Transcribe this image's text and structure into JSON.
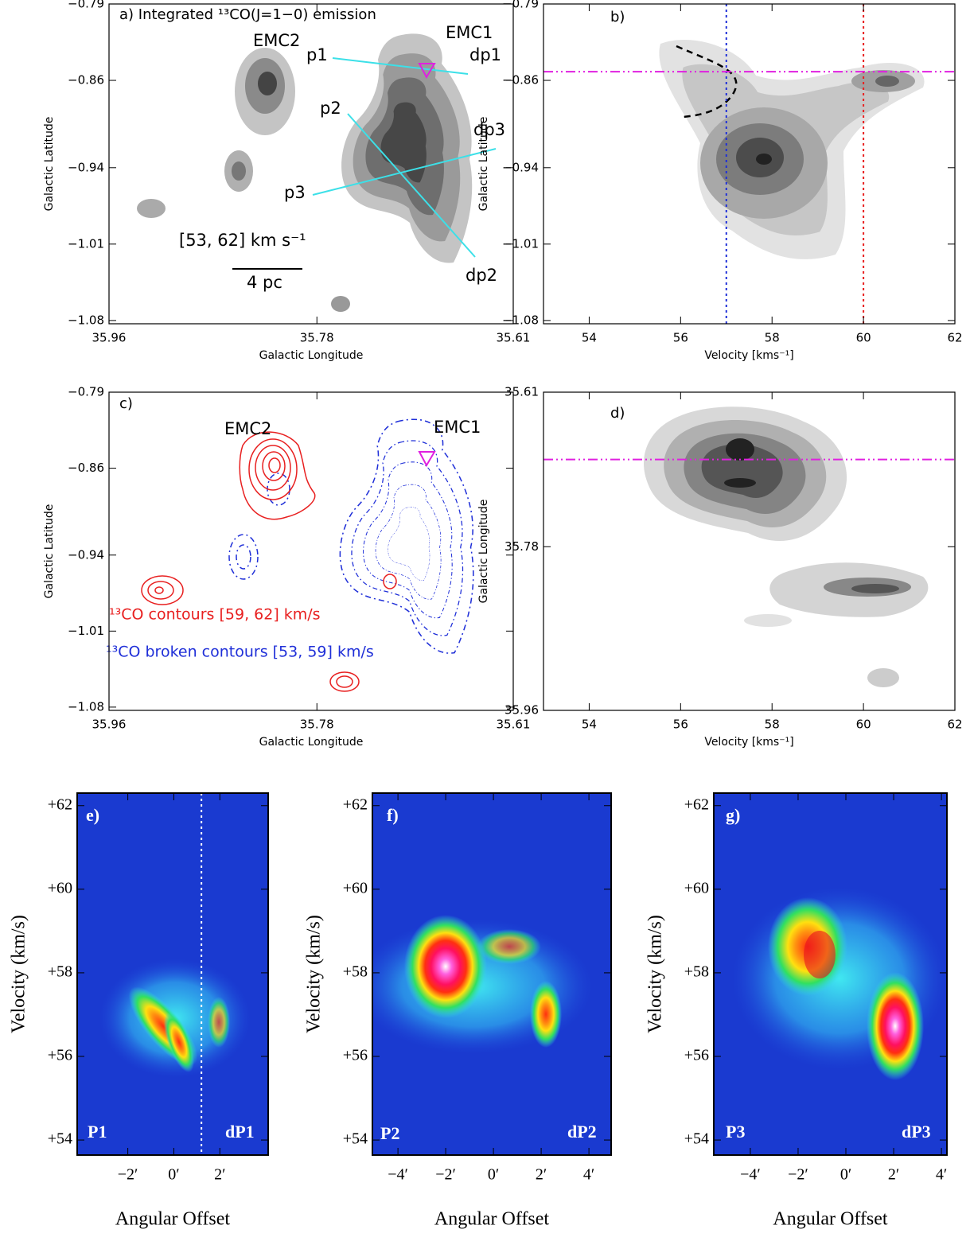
{
  "chart_data": [
    {
      "type": "contour",
      "title": "a) Integrated ¹³CO(J=1−0) emission",
      "x_label": "Galactic Longitude",
      "y_label": "Galactic Latitude",
      "xlim": [
        35.96,
        35.61
      ],
      "ylim": [
        -1.083,
        -0.79
      ],
      "xticks": [
        35.96,
        35.78,
        35.61
      ],
      "yticks": [
        {
          "value": -0.79,
          "label": "−0.79"
        },
        {
          "value": -0.86,
          "label": "−0.86"
        },
        {
          "value": -0.94,
          "label": "−0.94"
        },
        {
          "value": -1.01,
          "label": "−1.01"
        },
        {
          "value": -1.08,
          "label": "−1.08"
        }
      ],
      "annotations": [
        "EMC2",
        "EMC1",
        "dp1",
        "p1",
        "p2",
        "dp3",
        "p3",
        "dp2",
        "[53, 62] km s⁻¹",
        "4 pc"
      ]
    },
    {
      "type": "pv",
      "title": "b)",
      "x_label": "Velocity [kms⁻¹]",
      "y_label": "Galactic Latitude",
      "xlim": [
        53,
        62
      ],
      "ylim": [
        -1.083,
        -0.79
      ],
      "xticks": [
        54,
        56,
        58,
        60,
        62
      ],
      "yticks": [
        {
          "value": -0.79,
          "label": "−0.79"
        },
        {
          "value": -0.86,
          "label": "−0.86"
        },
        {
          "value": -0.94,
          "label": "−0.94"
        },
        {
          "value": -1.01,
          "label": "−1.01"
        },
        {
          "value": -1.08,
          "label": "−1.08"
        }
      ],
      "vlines": [
        {
          "value": 57,
          "color": "#1f2fd8"
        },
        {
          "value": 60,
          "color": "#e82020"
        }
      ],
      "hlines": [
        {
          "value": -0.852,
          "color": "#e020e0"
        }
      ]
    },
    {
      "type": "contour",
      "title": "c)",
      "x_label": "Galactic Longitude",
      "y_label": "Galactic Latitude",
      "xlim": [
        35.96,
        35.61
      ],
      "ylim": [
        -1.083,
        -0.79
      ],
      "xticks": [
        35.96,
        35.78,
        35.61
      ],
      "yticks": [
        {
          "value": -0.79,
          "label": "−0.79"
        },
        {
          "value": -0.86,
          "label": "−0.86"
        },
        {
          "value": -0.94,
          "label": "−0.94"
        },
        {
          "value": -1.01,
          "label": "−1.01"
        },
        {
          "value": -1.08,
          "label": "−1.08"
        }
      ],
      "annotations": [
        "EMC2",
        "EMC1",
        "¹³CO contours [59, 62] km/s",
        "¹³CO broken contours [53, 59] km/s"
      ]
    },
    {
      "type": "pv",
      "title": "d)",
      "x_label": "Velocity [kms⁻¹]",
      "y_label": "Galactic Longitude",
      "xlim": [
        53,
        62
      ],
      "ylim": [
        35.96,
        35.61
      ],
      "xticks": [
        54,
        56,
        58,
        60,
        62
      ],
      "yticks": [
        35.61,
        35.78,
        35.96
      ],
      "vlines": [],
      "hlines": [
        {
          "value": 35.684,
          "color": "#e020e0"
        }
      ]
    },
    {
      "type": "heatmap",
      "title": "e)",
      "labels": [
        "P1",
        "dP1"
      ],
      "x_label": "Angular Offset",
      "y_label": "Velocity (km/s)",
      "xlim": [
        -4.2,
        4.1
      ],
      "ylim": [
        53.64,
        62.3
      ],
      "xticks": [
        {
          "value": -2,
          "label": "−2′"
        },
        {
          "value": 0,
          "label": "0′"
        },
        {
          "value": 2,
          "label": "2′"
        }
      ],
      "yticks": [
        {
          "value": 54,
          "label": "+54"
        },
        {
          "value": 56,
          "label": "+56"
        },
        {
          "value": 58,
          "label": "+58"
        },
        {
          "value": 60,
          "label": "+60"
        },
        {
          "value": 62,
          "label": "+62"
        }
      ],
      "vlines": [
        {
          "value": 1.2,
          "color": "#ffffff"
        }
      ]
    },
    {
      "type": "heatmap",
      "title": "f)",
      "labels": [
        "P2",
        "dP2"
      ],
      "x_label": "Angular Offset",
      "y_label": "Velocity (km/s)",
      "xlim": [
        -5.07,
        4.93
      ],
      "ylim": [
        53.64,
        62.3
      ],
      "xticks": [
        {
          "value": -4,
          "label": "−4′"
        },
        {
          "value": -2,
          "label": "−2′"
        },
        {
          "value": 0,
          "label": "0′"
        },
        {
          "value": 2,
          "label": "2′"
        },
        {
          "value": 4,
          "label": "4′"
        }
      ],
      "yticks": [
        {
          "value": 54,
          "label": "+54"
        },
        {
          "value": 56,
          "label": "+56"
        },
        {
          "value": 58,
          "label": "+58"
        },
        {
          "value": 60,
          "label": "+60"
        },
        {
          "value": 62,
          "label": "+62"
        }
      ]
    },
    {
      "type": "heatmap",
      "title": "g)",
      "labels": [
        "P3",
        "dP3"
      ],
      "x_label": "Angular Offset",
      "y_label": "Velocity (km/s)",
      "xlim": [
        -5.53,
        4.23
      ],
      "ylim": [
        53.64,
        62.3
      ],
      "xticks": [
        {
          "value": -4,
          "label": "−4′"
        },
        {
          "value": -2,
          "label": "−2′"
        },
        {
          "value": 0,
          "label": "0′"
        },
        {
          "value": 2,
          "label": "2′"
        },
        {
          "value": 4,
          "label": "4′"
        }
      ],
      "yticks": [
        {
          "value": 54,
          "label": "+54"
        },
        {
          "value": 56,
          "label": "+56"
        },
        {
          "value": 58,
          "label": "+58"
        },
        {
          "value": 60,
          "label": "+60"
        },
        {
          "value": 62,
          "label": "+62"
        }
      ]
    }
  ]
}
